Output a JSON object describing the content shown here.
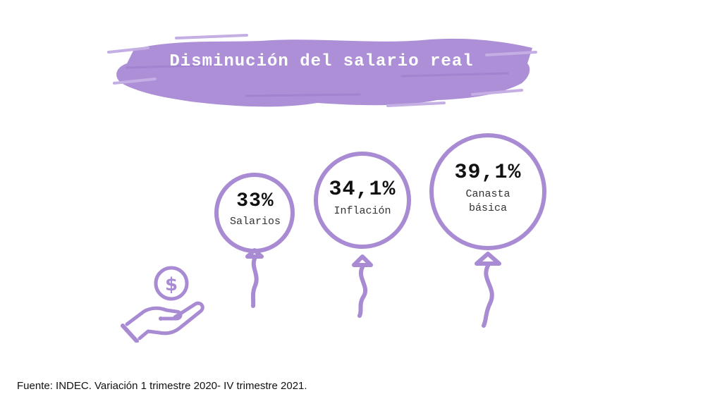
{
  "title": "Disminución del salario real",
  "colors": {
    "accent": "#a88bd3",
    "brush": "#ac8fd6",
    "text": "#111111"
  },
  "balloons": [
    {
      "value": "33%",
      "label": "Salarios"
    },
    {
      "value": "34,1%",
      "label": "Inflación"
    },
    {
      "value": "39,1%",
      "label_line1": "Canasta",
      "label_line2": "básica"
    }
  ],
  "icon": "hand-with-dollar-coin-icon",
  "source": "Fuente: INDEC. Variación 1 trimestre 2020- IV trimestre 2021."
}
